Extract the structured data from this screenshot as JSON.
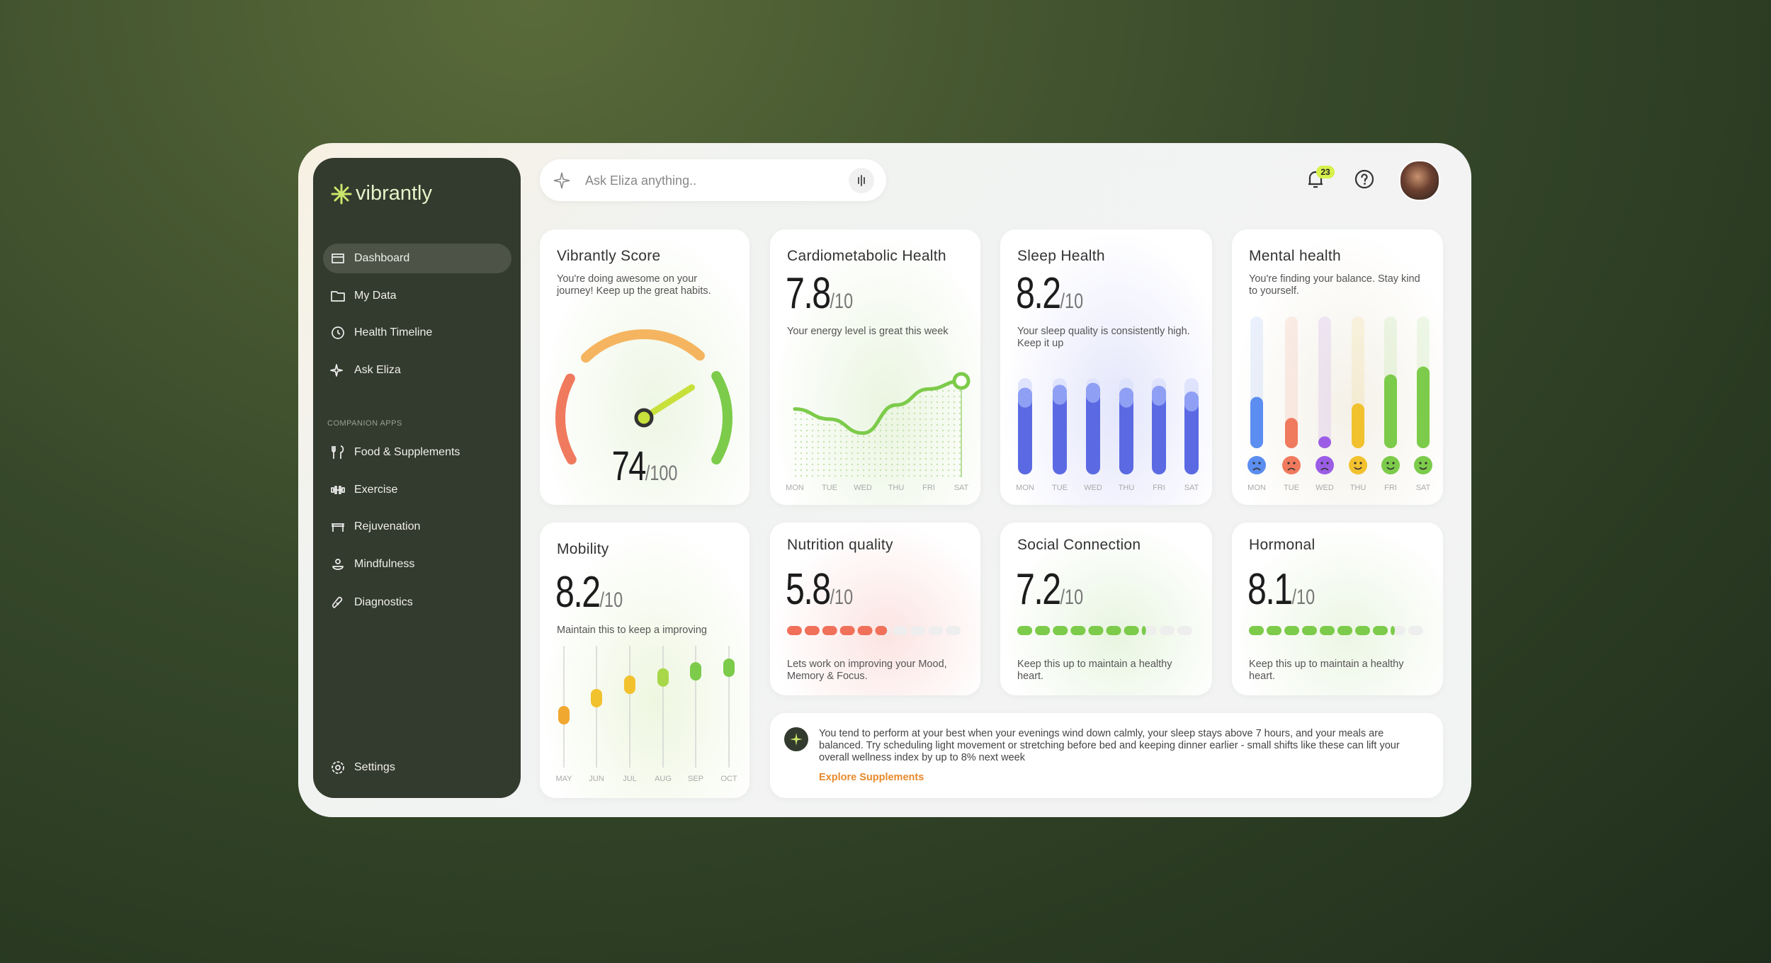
{
  "brand": "vibrantly",
  "search_placeholder": "Ask Eliza anything..",
  "notifications": 23,
  "nav": {
    "items": [
      "Dashboard",
      "My Data",
      "Health Timeline",
      "Ask Eliza"
    ],
    "section": "COMPANION APPS",
    "apps": [
      "Food & Supplements",
      "Exercise",
      "Rejuvenation",
      "Mindfulness",
      "Diagnostics"
    ],
    "settings": "Settings"
  },
  "weekdays": [
    "MON",
    "TUE",
    "WED",
    "THU",
    "FRI",
    "SAT"
  ],
  "cards": {
    "score": {
      "title": "Vibrantly Score",
      "text": "You're doing awesome on your journey! Keep up the great habits.",
      "value": 74,
      "out_of": {
        "value": 100,
        "label": "/100"
      },
      "colors": [
        "#f07a5e",
        "#f5b560",
        "#7ccb4a"
      ]
    },
    "cardio": {
      "title": "Cardiometabolic Health",
      "value": 7.8,
      "out_of": {
        "value": 10,
        "label": "/10"
      },
      "text": "Your energy level is great this week",
      "trend": [
        6.4,
        5.9,
        5.2,
        6.6,
        7.4,
        7.8
      ],
      "ylim": [
        3,
        9
      ],
      "color": "#7ccb4a"
    },
    "sleep": {
      "title": "Sleep Health",
      "value": 8.2,
      "out_of": {
        "value": 10,
        "label": "/10"
      },
      "text": "Your sleep quality is consistently high. Keep it up",
      "nightly": [
        0.9,
        0.93,
        0.95,
        0.9,
        0.92,
        0.86
      ],
      "color": "#4c5ce0"
    },
    "mental": {
      "title": "Mental health",
      "text": "You're finding your balance. Stay kind to yourself.",
      "mood": [
        0.39,
        0.23,
        0.09,
        0.34,
        0.56,
        0.62
      ],
      "colors": [
        "#5b8ef0",
        "#f07a5e",
        "#9b5de5",
        "#f2c12e",
        "#7ccb4a",
        "#7ccb4a"
      ]
    },
    "mobility": {
      "title": "Mobility",
      "value": 8.2,
      "out_of": {
        "value": 10,
        "label": "/10"
      },
      "text": "Maintain this to keep a improving",
      "months": [
        "MAY",
        "JUN",
        "JUL",
        "AUG",
        "SEP",
        "OCT"
      ],
      "trend": [
        0.43,
        0.57,
        0.68,
        0.74,
        0.79,
        0.82
      ],
      "colors": [
        "#f0a830",
        "#f2c12e",
        "#f2c12e",
        "#a8d84a",
        "#7ccb4a",
        "#7ccb4a"
      ]
    },
    "nutrition": {
      "title": "Nutrition quality",
      "value": 5.8,
      "out_of": {
        "value": 10,
        "label": "/10"
      },
      "text": "Lets work on improving your Mood, Memory & Focus.",
      "color": "#f0705a"
    },
    "social": {
      "title": "Social Connection",
      "value": 7.2,
      "out_of": {
        "value": 10,
        "label": "/10"
      },
      "text": "Keep this up to maintain a healthy heart.",
      "color": "#7ccb4a"
    },
    "hormonal": {
      "title": "Hormonal",
      "value": 8.1,
      "out_of": {
        "value": 10,
        "label": "/10"
      },
      "text": "Keep this up to maintain a healthy heart.",
      "color": "#7ccb4a"
    }
  },
  "insight": {
    "text": "You tend to perform at your best when your evenings wind down calmly, your sleep stays above 7 hours, and your meals are balanced. Try scheduling light movement or stretching before bed and keeping dinner earlier - small shifts like these can lift your overall wellness index by up to 8% next week",
    "link": "Explore Supplements"
  }
}
